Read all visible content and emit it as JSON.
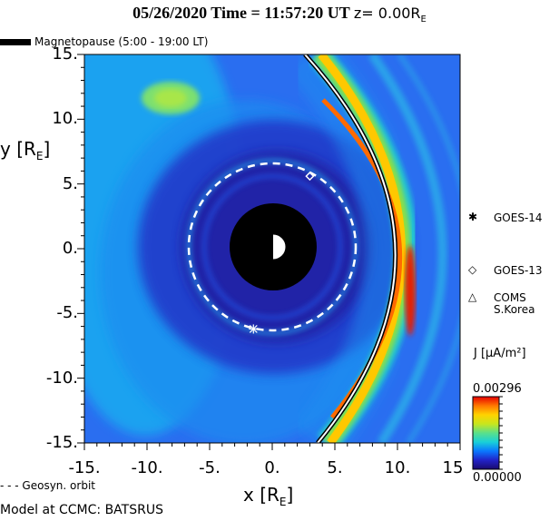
{
  "title": {
    "main": "05/26/2020 Time = 11:57:20 UT",
    "z_label": "z= 0.00R",
    "z_sub": "E"
  },
  "legend": {
    "magnetopause_label": "Magnetopause (5:00 - 19:00 LT)",
    "orbit_label": "- - - Geosyn. orbit",
    "model_label": "Model at CCMC: BATSRUS"
  },
  "colorbar": {
    "label": "J [μA/m²]",
    "max_label": "0.00296",
    "min_label": "0.00000",
    "vmin": 0.0,
    "vmax": 0.00296,
    "colormap": [
      "#1a0a6e",
      "#2222c8",
      "#0a78ff",
      "#19d0d8",
      "#5ae08a",
      "#c8e61e",
      "#ffd200",
      "#ff7800",
      "#e60000"
    ]
  },
  "satellites": [
    {
      "name": "GOES-14",
      "symbol": "asterisk",
      "x": -1.5,
      "y": -6.2
    },
    {
      "name": "GOES-13",
      "symbol": "diamond",
      "x": 3.0,
      "y": 5.6
    },
    {
      "name": "COMS S.Korea",
      "symbol": "triangle",
      "x": null,
      "y": null
    }
  ],
  "chart_data": {
    "type": "heatmap",
    "title": "05/26/2020 Time = 11:57:20 UT z= 0.00R_E",
    "xlabel": "x [R_E]",
    "ylabel": "y [R_E]",
    "xlim": [
      15,
      -15
    ],
    "ylim": [
      -15,
      15
    ],
    "xticks": [
      -15,
      -10,
      -5,
      0,
      5,
      10,
      15
    ],
    "xtick_labels": [
      "-15.",
      "-10.",
      "-5.",
      "0.",
      "5.",
      "10.",
      "15"
    ],
    "yticks": [
      15,
      10,
      5,
      0,
      -5,
      -10,
      -15
    ],
    "ytick_labels": [
      "15.",
      "10.",
      "5.",
      "0.",
      "-5.",
      "-10.",
      "-15."
    ],
    "variable": "J (current density)",
    "units": "μA/m²",
    "magnetopause_standoff_x": 11.0,
    "geosynchronous_orbit_radius": 6.6,
    "inner_boundary_radius": 3.5,
    "features": [
      {
        "name": "magnetopause current layer",
        "x_subsolar": 10.9,
        "peak_value": 0.00296
      },
      {
        "name": "bow shock region",
        "x_subsolar": 13.5,
        "peak_value": 0.0012
      }
    ]
  }
}
